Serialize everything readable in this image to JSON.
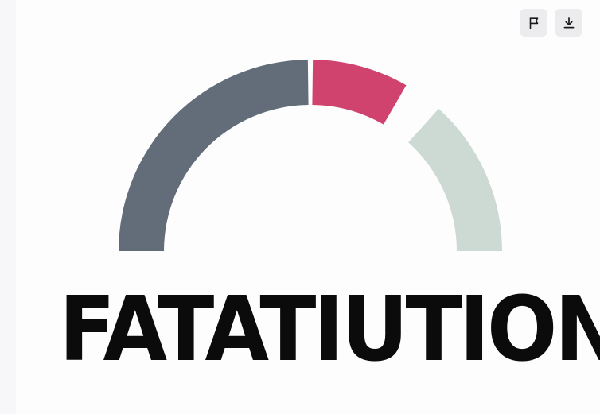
{
  "toolbar": {
    "report": {
      "icon": "flag-icon"
    },
    "download": {
      "icon": "download-icon"
    }
  },
  "chart_data": {
    "type": "gauge",
    "title": "FATATIUTION",
    "segments": [
      {
        "value": 50,
        "color": "#636c79"
      },
      {
        "value": 20,
        "color": "#d0436f"
      },
      {
        "value": 30,
        "color": "#ccdad3"
      }
    ],
    "range": [
      0,
      100
    ]
  }
}
